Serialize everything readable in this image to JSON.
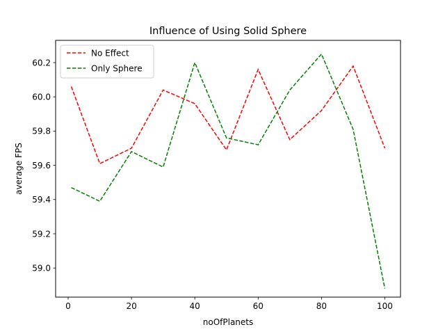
{
  "chart_data": {
    "type": "line",
    "title": "Influence of Using Solid Sphere",
    "xlabel": "noOfPlanets",
    "ylabel": "average FPS",
    "xlim": [
      -3.95,
      104.95
    ],
    "ylim": [
      58.83,
      60.33
    ],
    "xticks": [
      0,
      20,
      40,
      60,
      80,
      100
    ],
    "yticks": [
      59.0,
      59.2,
      59.4,
      59.6,
      59.8,
      60.0,
      60.2
    ],
    "xtick_labels": [
      "0",
      "20",
      "40",
      "60",
      "80",
      "100"
    ],
    "ytick_labels": [
      "59.0",
      "59.2",
      "59.4",
      "59.6",
      "59.8",
      "60.0",
      "60.2"
    ],
    "grid": false,
    "legend_position": "upper-left",
    "x": [
      1,
      10,
      20,
      30,
      40,
      50,
      60,
      70,
      80,
      90,
      100
    ],
    "series": [
      {
        "name": "No Effect",
        "color": "#ff0000",
        "linestyle": "dashed",
        "values": [
          60.06,
          59.61,
          59.7,
          60.04,
          59.96,
          59.69,
          60.16,
          59.75,
          59.92,
          60.18,
          59.7
        ]
      },
      {
        "name": "Only Sphere",
        "color": "#008000",
        "linestyle": "dashed",
        "values": [
          59.47,
          59.39,
          59.68,
          59.59,
          60.2,
          59.76,
          59.72,
          60.04,
          60.25,
          59.81,
          58.88
        ]
      }
    ]
  }
}
